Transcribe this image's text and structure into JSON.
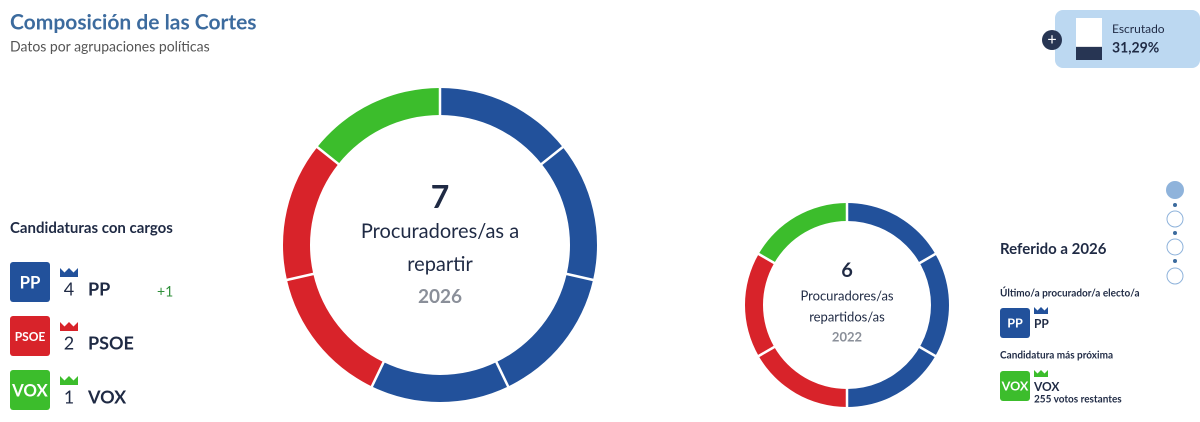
{
  "header": {
    "title": "Composición de las Cortes",
    "subtitle": "Datos por agrupaciones políticas"
  },
  "counted": {
    "label": "Escrutado",
    "value": 31.29,
    "value_label": "31,29%"
  },
  "candidates": {
    "title": "Candidaturas con cargos",
    "parties": [
      {
        "logo": "PP",
        "seats": 4,
        "name": "PP",
        "change": "+1",
        "color": "#22519b"
      },
      {
        "logo": "PSOE",
        "seats": 2,
        "name": "PSOE",
        "color": "#d8232a"
      },
      {
        "logo": "VOX",
        "seats": 1,
        "name": "VOX",
        "color": "#3cbd2c"
      }
    ]
  },
  "donut_2026": {
    "total": 7,
    "label_1": "Procuradores/as a",
    "label_2": "repartir",
    "year": "2026"
  },
  "donut_2022": {
    "total": 6,
    "label_1": "Procuradores/as",
    "label_2": "repartidos/as",
    "year": "2022",
    "seats": [
      3,
      2,
      1
    ]
  },
  "reference": {
    "title": "Referido a 2026",
    "last_elected": {
      "title": "Último/a procurador/a electo/a",
      "logo": "PP",
      "name": "PP",
      "color": "#22519b"
    },
    "closest": {
      "title": "Candidatura más próxima",
      "logo": "VOX",
      "name": "VOX",
      "note": "255 votos restantes",
      "color": "#3cbd2c"
    }
  }
}
